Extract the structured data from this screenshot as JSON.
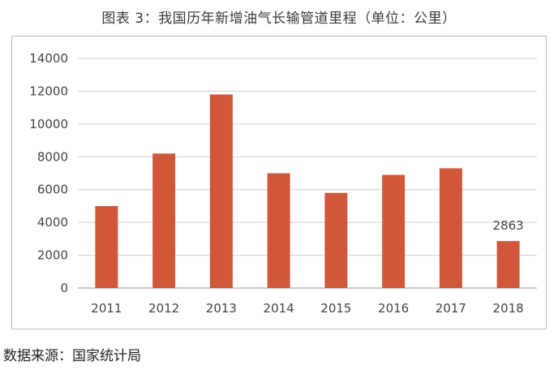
{
  "title": "图表 3：我国历年新增油气长输管道里程（单位：公里）",
  "source": "数据来源：国家统计局",
  "chart_data": {
    "type": "bar",
    "categories": [
      "2011",
      "2012",
      "2013",
      "2014",
      "2015",
      "2016",
      "2017",
      "2018"
    ],
    "values": [
      5000,
      8200,
      11800,
      7000,
      5800,
      6900,
      7300,
      2863
    ],
    "data_labels": [
      null,
      null,
      null,
      null,
      null,
      null,
      null,
      "2863"
    ],
    "ylim": [
      0,
      14000
    ],
    "yticks": [
      "0",
      "2000",
      "4000",
      "6000",
      "8000",
      "10000",
      "12000",
      "14000"
    ],
    "grid": true,
    "bar_color": "#d0573a",
    "legend": "none"
  }
}
